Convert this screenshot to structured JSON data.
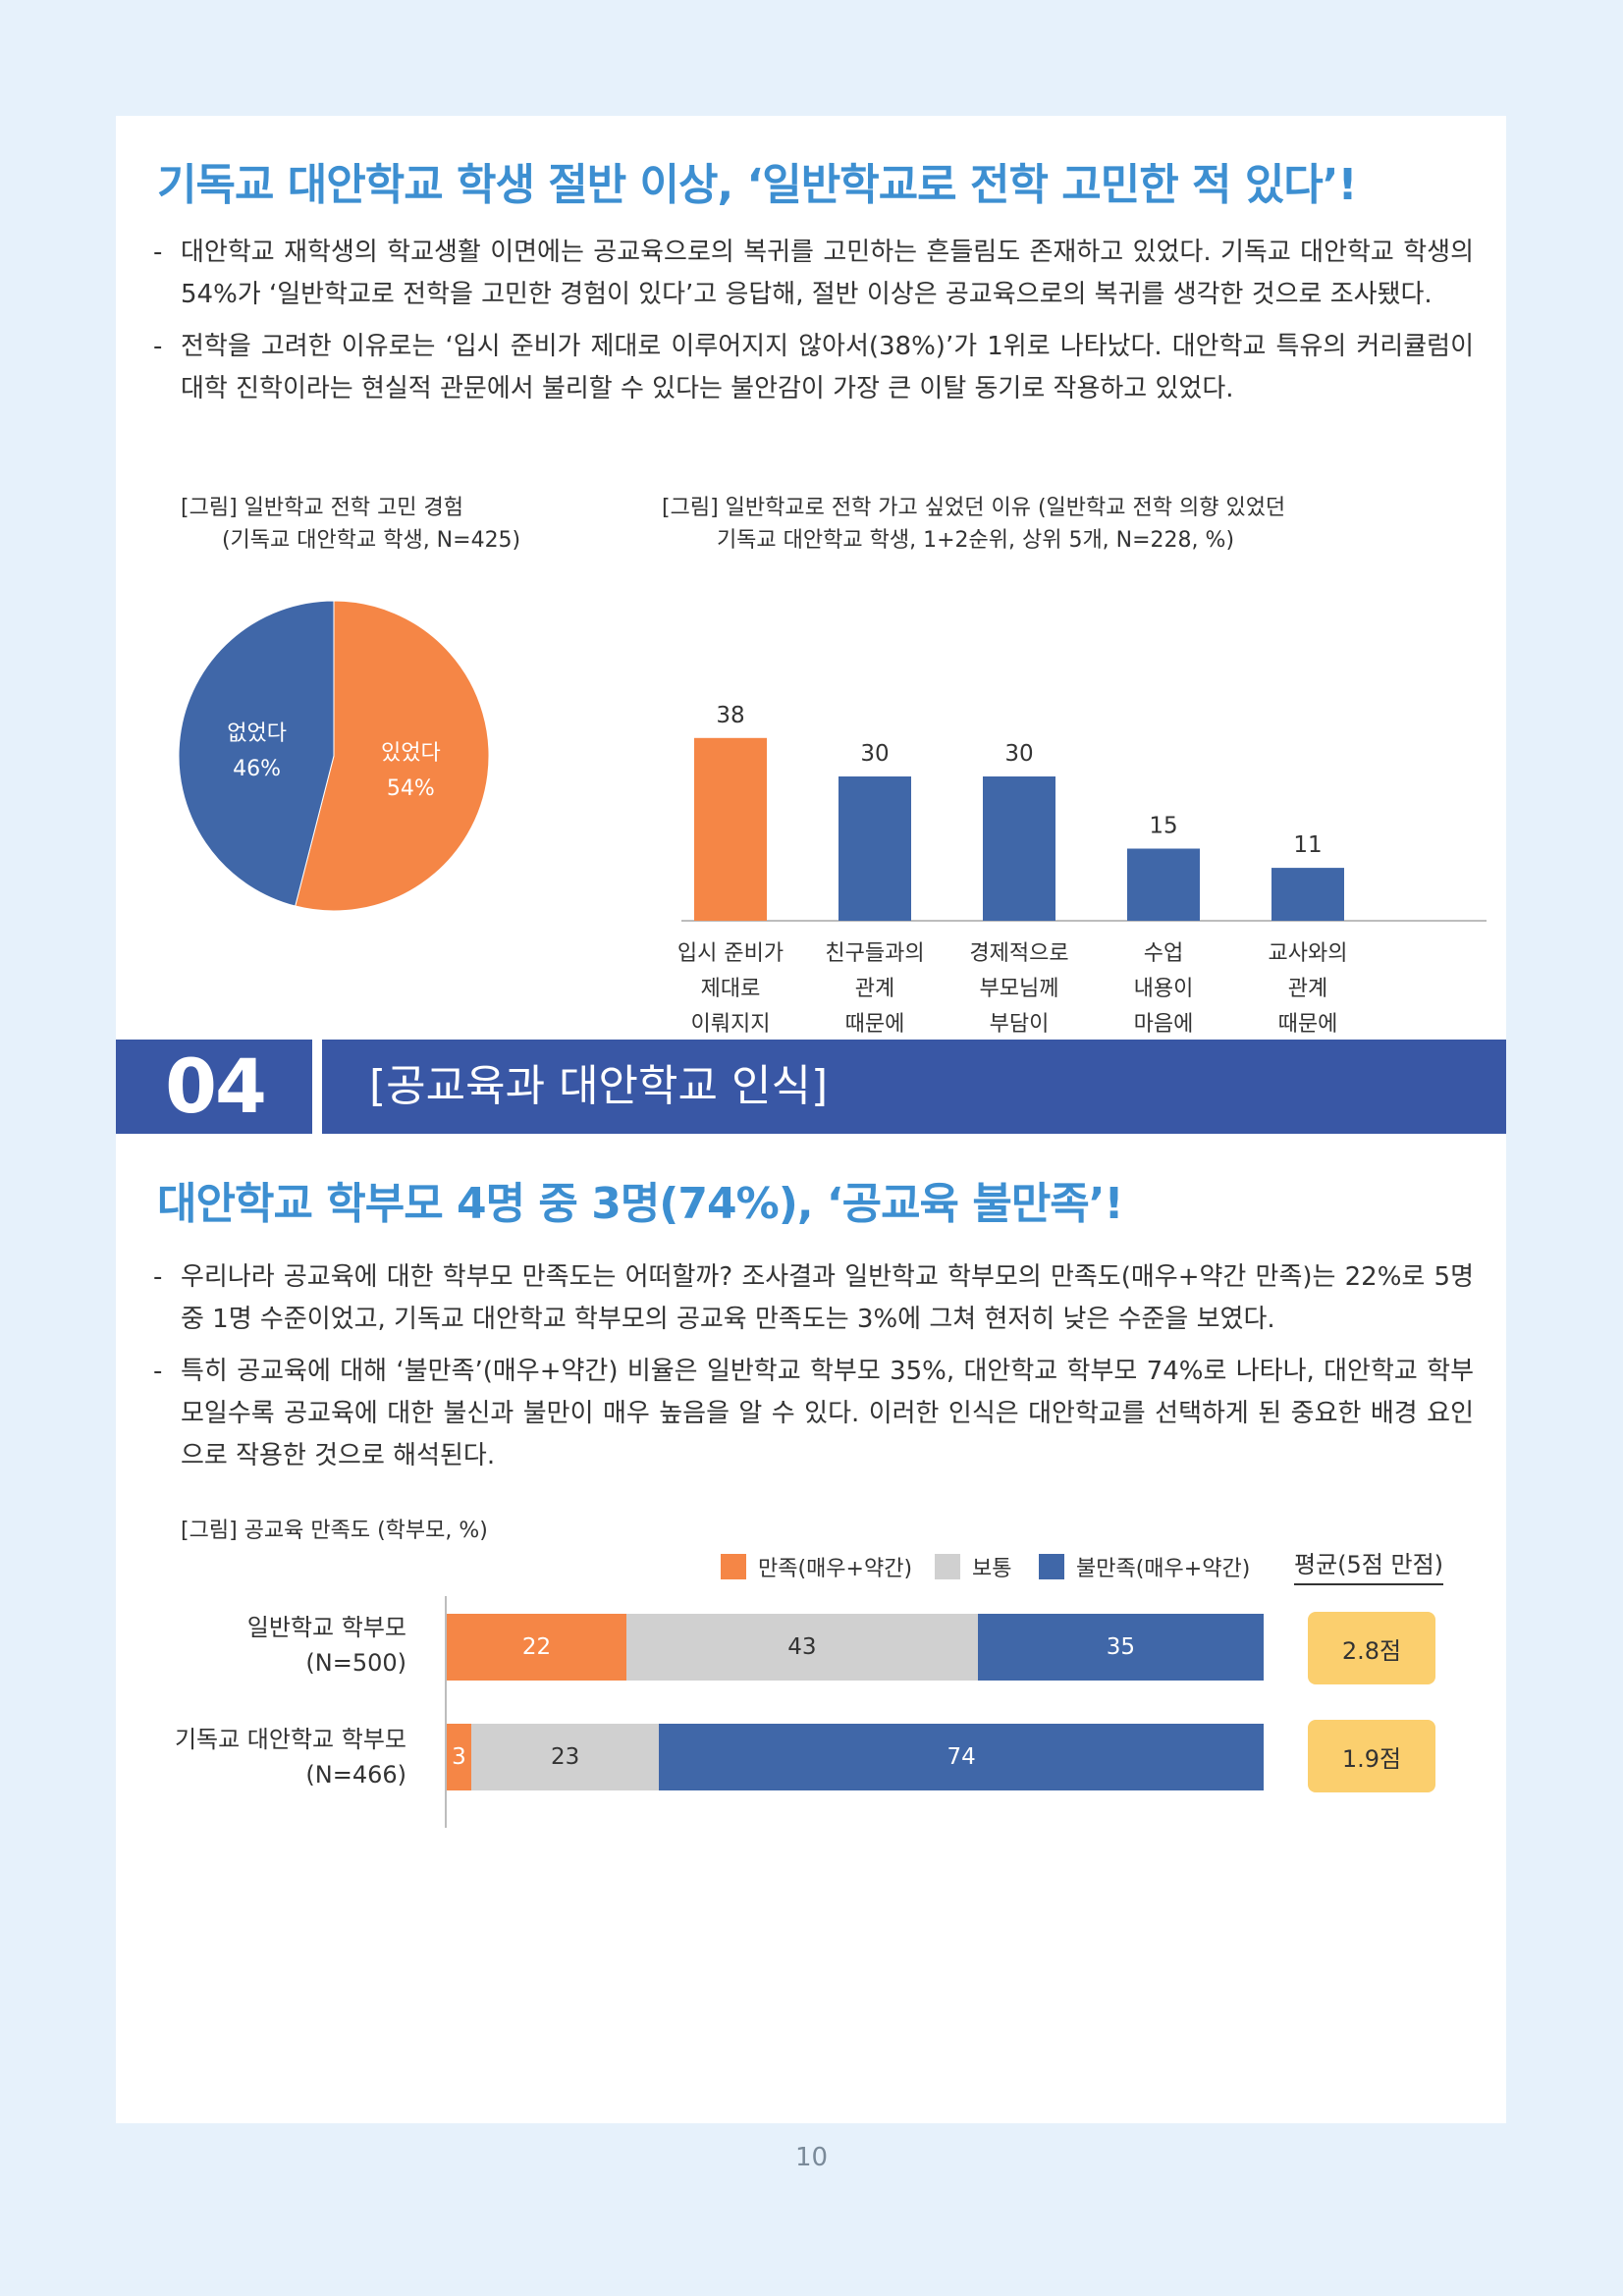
{
  "section1": {
    "headline": "기독교 대안학교 학생 절반 이상, ‘일반학교로 전학 고민한 적 있다’!",
    "bullets": [
      "대안학교 재학생의 학교생활 이면에는 공교육으로의 복귀를 고민하는 흔들림도 존재하고 있었다. 기독교 대안학교 학생의 54%가 ‘일반학교로 전학을 고민한 경험이 있다’고 응답해, 절반 이상은 공교육으로의 복귀를 생각한 것으로 조사됐다.",
      "전학을 고려한 이유로는 ‘입시 준비가 제대로 이루어지지 않아서(38%)’가 1위로 나타났다. 대안학교 특유의 커리큘럼이 대학 진학이라는 현실적 관문에서 불리할 수 있다는 불안감이 가장 큰 이탈 동기로 작용하고 있었다."
    ]
  },
  "chart_data": [
    {
      "type": "pie",
      "caption": "[그림] 일반학교 전학 고민 경험\n      (기독교 대안학교 학생, N=425)",
      "slices": [
        {
          "label": "있었다",
          "value": 54,
          "display": "54%",
          "color": "#f58646"
        },
        {
          "label": "없었다",
          "value": 46,
          "display": "46%",
          "color": "#4067a8"
        }
      ]
    },
    {
      "type": "bar",
      "caption": "[그림] 일반학교로 전학 가고 싶었던 이유 (일반학교 전학 의향 있었던\n        기독교 대안학교 학생, 1+2순위, 상위 5개, N=228, %)",
      "categories": [
        "입시 준비가\n제대로\n이뤄지지\n않아서",
        "친구들과의\n관계\n때문에",
        "경제적으로\n부모님께\n부담이\n돼서",
        "수업\n내용이\n마음에\n안 들어서",
        "교사와의\n관계\n때문에"
      ],
      "values": [
        38,
        30,
        30,
        15,
        11
      ],
      "colors": [
        "#f58646",
        "#4067a8",
        "#4067a8",
        "#4067a8",
        "#4067a8"
      ],
      "ylim": [
        0,
        40
      ]
    },
    {
      "type": "bar",
      "orientation": "horizontal-stacked",
      "caption": "[그림] 공교육 만족도 (학부모, %)",
      "legend": [
        {
          "name": "만족(매우+약간)",
          "color": "#f58646"
        },
        {
          "name": "보통",
          "color": "#d0d0d0"
        },
        {
          "name": "불만족(매우+약간)",
          "color": "#4067a8"
        }
      ],
      "avg_header": "평균(5점 만점)",
      "rows": [
        {
          "label": "일반학교 학부모\n(N=500)",
          "values": [
            22,
            43,
            35
          ],
          "avg": "2.8점"
        },
        {
          "label": "기독교 대안학교 학부모\n(N=466)",
          "values": [
            3,
            23,
            74
          ],
          "avg": "1.9점"
        }
      ]
    }
  ],
  "section_band": {
    "number": "04",
    "title": "[공교육과 대안학교 인식]"
  },
  "section2": {
    "headline": "대안학교 학부모 4명 중 3명(74%), ‘공교육 불만족’!",
    "bullets": [
      "우리나라 공교육에 대한 학부모 만족도는 어떠할까? 조사결과 일반학교 학부모의 만족도(매우+약간 만족)는 22%로 5명 중 1명 수준이었고, 기독교 대안학교 학부모의 공교육 만족도는 3%에 그쳐 현저히 낮은 수준을 보였다.",
      "특히 공교육에 대해 ‘불만족’(매우+약간) 비율은 일반학교 학부모 35%, 대안학교 학부모 74%로 나타나, 대안학교 학부모일수록 공교육에 대한 불신과 불만이 매우 높음을 알 수 있다. 이러한 인식은 대안학교를 선택하게 된 중요한 배경 요인으로 작용한 것으로 해석된다."
    ]
  },
  "page_number": "10"
}
